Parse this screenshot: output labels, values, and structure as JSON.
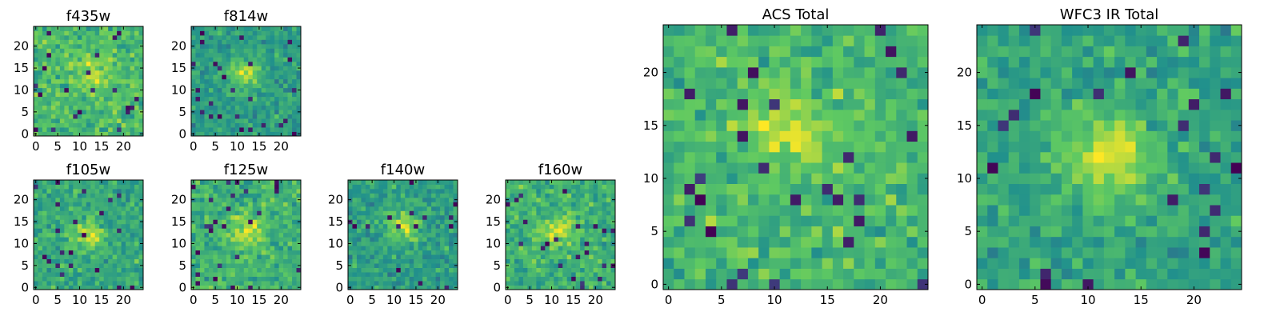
{
  "colors": {
    "colormap": "viridis",
    "viridis_stops": [
      "#440154",
      "#3b528b",
      "#21918c",
      "#5ec962",
      "#fde725"
    ]
  },
  "chart_data": [
    {
      "type": "heatmap",
      "title": "f435w",
      "grid_size": [
        25,
        25
      ],
      "origin": "lower",
      "xticks": [
        0,
        5,
        10,
        15,
        20
      ],
      "yticks": [
        0,
        5,
        10,
        15,
        20
      ],
      "seed": 435,
      "blob": {
        "cx": 13,
        "cy": 14,
        "amp": 0.2
      }
    },
    {
      "type": "heatmap",
      "title": "f814w",
      "grid_size": [
        25,
        25
      ],
      "origin": "lower",
      "xticks": [
        0,
        5,
        10,
        15,
        20
      ],
      "yticks": [
        0,
        5,
        10,
        15,
        20
      ],
      "seed": 814,
      "blob": {
        "cx": 12,
        "cy": 14,
        "amp": 0.35
      }
    },
    {
      "type": "heatmap",
      "title": "f105w",
      "grid_size": [
        25,
        25
      ],
      "origin": "lower",
      "xticks": [
        0,
        5,
        10,
        15,
        20
      ],
      "yticks": [
        0,
        5,
        10,
        15,
        20
      ],
      "seed": 105,
      "blob": {
        "cx": 12,
        "cy": 12,
        "amp": 0.3
      }
    },
    {
      "type": "heatmap",
      "title": "f125w",
      "grid_size": [
        25,
        25
      ],
      "origin": "lower",
      "xticks": [
        0,
        5,
        10,
        15,
        20
      ],
      "yticks": [
        0,
        5,
        10,
        15,
        20
      ],
      "seed": 125,
      "blob": {
        "cx": 12,
        "cy": 13,
        "amp": 0.3
      }
    },
    {
      "type": "heatmap",
      "title": "f140w",
      "grid_size": [
        25,
        25
      ],
      "origin": "lower",
      "xticks": [
        0,
        5,
        10,
        15,
        20
      ],
      "yticks": [
        0,
        5,
        10,
        15,
        20
      ],
      "seed": 140,
      "blob": {
        "cx": 12,
        "cy": 14,
        "amp": 0.35
      }
    },
    {
      "type": "heatmap",
      "title": "f160w",
      "grid_size": [
        25,
        25
      ],
      "origin": "lower",
      "xticks": [
        0,
        5,
        10,
        15,
        20
      ],
      "yticks": [
        0,
        5,
        10,
        15,
        20
      ],
      "seed": 160,
      "blob": {
        "cx": 12,
        "cy": 13,
        "amp": 0.3
      }
    },
    {
      "type": "heatmap",
      "title": "ACS Total",
      "grid_size": [
        25,
        25
      ],
      "origin": "lower",
      "xticks": [
        0,
        5,
        10,
        15,
        20
      ],
      "yticks": [
        0,
        5,
        10,
        15,
        20
      ],
      "seed": 77,
      "blob": {
        "cx": 11,
        "cy": 15,
        "amp": 0.3
      }
    },
    {
      "type": "heatmap",
      "title": "WFC3 IR Total",
      "grid_size": [
        25,
        25
      ],
      "origin": "lower",
      "xticks": [
        0,
        5,
        10,
        15,
        20
      ],
      "yticks": [
        0,
        5,
        10,
        15,
        20
      ],
      "seed": 31,
      "blob": {
        "cx": 12,
        "cy": 12,
        "amp": 0.45
      }
    }
  ]
}
